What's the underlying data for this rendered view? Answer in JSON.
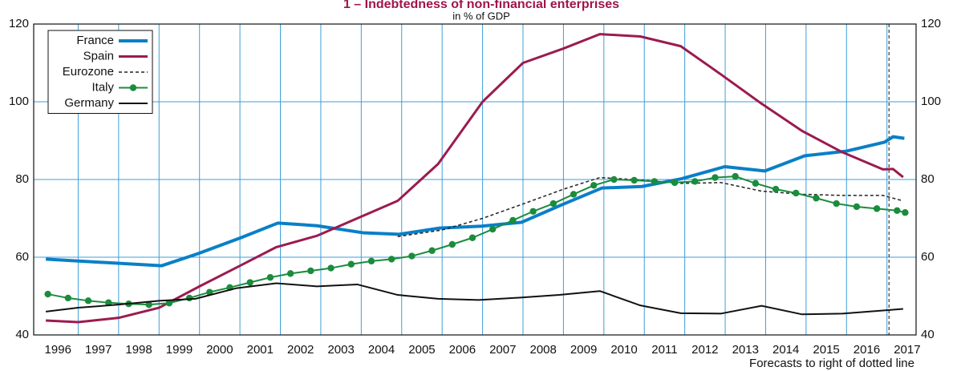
{
  "chart_data": {
    "type": "line",
    "title": "1 – Indebtedness of non-financial enterprises",
    "subtitle": "in % of GDP",
    "note": "Forecasts to right of dotted line",
    "forecast_x": 2016.55,
    "xlim": [
      1995.4,
      2017.22
    ],
    "xticks": [
      1996,
      1997,
      1998,
      1999,
      2000,
      2001,
      2002,
      2003,
      2004,
      2005,
      2006,
      2007,
      2008,
      2009,
      2010,
      2011,
      2012,
      2013,
      2014,
      2015,
      2016,
      2017
    ],
    "ylim": [
      40,
      120
    ],
    "yticks": [
      40,
      60,
      80,
      100,
      120
    ],
    "grid": true,
    "legend": "upper left",
    "series": [
      {
        "name": "France",
        "color": "#0a7fc7",
        "linewidth": 4,
        "x": [
          1995.7,
          1998.56,
          1999.43,
          2000.52,
          2001.44,
          2002.41,
          2003.54,
          2004.43,
          2005.44,
          2006.48,
          2007.47,
          2008.46,
          2009.45,
          2010.44,
          2011.42,
          2012.49,
          2013.48,
          2014.47,
          2015.5,
          2016.44,
          2016.65,
          2016.93
        ],
        "values": [
          59.5,
          57.8,
          60.8,
          65,
          68.8,
          68.1,
          66.3,
          65.9,
          67.5,
          68,
          69,
          73.5,
          77.8,
          78.2,
          80.2,
          83.3,
          82.2,
          86.1,
          87.3,
          89.6,
          91,
          90.6
        ]
      },
      {
        "name": "Spain",
        "color": "#9b1b4f",
        "linewidth": 3,
        "x": [
          1995.7,
          1996.5,
          1997.5,
          1998.5,
          1999.5,
          2000.5,
          2001.4,
          2002.4,
          2003.4,
          2004.4,
          2005.4,
          2006.5,
          2007.5,
          2008.5,
          2009.4,
          2010.4,
          2011.4,
          2012.4,
          2013.4,
          2014.4,
          2015.4,
          2016.4,
          2016.65,
          2016.9
        ],
        "values": [
          43.7,
          43.3,
          44.4,
          47,
          52.5,
          57.8,
          62.6,
          65.5,
          70,
          74.5,
          84,
          100,
          110,
          113.7,
          117.4,
          116.8,
          114.3,
          107,
          99.5,
          92.5,
          87,
          82.6,
          82.7,
          80.6
        ]
      },
      {
        "name": "Eurozone",
        "color": "#222222",
        "linewidth": 1.5,
        "dashed": true,
        "x": [
          2004.4,
          2005.5,
          2006.5,
          2007.5,
          2008.5,
          2009.4,
          2010.4,
          2011.4,
          2012.4,
          2013.4,
          2014.4,
          2015.4,
          2016.4,
          2016.9
        ],
        "values": [
          65.3,
          67,
          70,
          73.7,
          77.5,
          80.5,
          79.9,
          79,
          79.2,
          77,
          76.2,
          75.9,
          75.9,
          74.5
        ]
      },
      {
        "name": "Italy",
        "color": "#1a8c3c",
        "linewidth": 2,
        "markers": true,
        "x": [
          1995.75,
          1996.25,
          1996.75,
          1997.25,
          1997.75,
          1998.25,
          1998.75,
          1999.25,
          1999.75,
          2000.25,
          2000.75,
          2001.25,
          2001.75,
          2002.25,
          2002.75,
          2003.25,
          2003.75,
          2004.25,
          2004.75,
          2005.25,
          2005.75,
          2006.25,
          2006.75,
          2007.25,
          2007.75,
          2008.25,
          2008.75,
          2009.25,
          2009.75,
          2010.25,
          2010.75,
          2011.25,
          2011.75,
          2012.25,
          2012.75,
          2013.25,
          2013.75,
          2014.25,
          2014.75,
          2015.25,
          2015.75,
          2016.25,
          2016.75,
          2016.95
        ],
        "values": [
          50.5,
          49.5,
          48.8,
          48.3,
          48,
          47.8,
          48.2,
          49.5,
          51,
          52.2,
          53.5,
          54.8,
          55.8,
          56.5,
          57.2,
          58.2,
          59,
          59.5,
          60.3,
          61.7,
          63.3,
          65,
          67.2,
          69.5,
          71.8,
          73.8,
          76.2,
          78.5,
          80,
          79.8,
          79.5,
          79.2,
          79.5,
          80.5,
          80.8,
          79,
          77.5,
          76.5,
          75.2,
          73.8,
          73,
          72.5,
          72,
          71.5
        ]
      },
      {
        "name": "Germany",
        "color": "#111111",
        "linewidth": 2,
        "x": [
          1995.7,
          1996.5,
          1997.5,
          1998.5,
          1999.4,
          2000.4,
          2001.4,
          2002.4,
          2003.4,
          2004.4,
          2005.4,
          2006.4,
          2007.4,
          2008.4,
          2009.4,
          2010.4,
          2011.4,
          2012.4,
          2013.4,
          2014.4,
          2015.4,
          2016.4,
          2016.9
        ],
        "values": [
          46,
          47,
          47.8,
          48.8,
          49.3,
          52,
          53.3,
          52.5,
          53,
          50.3,
          49.3,
          49,
          49.6,
          50.3,
          51.3,
          47.6,
          45.6,
          45.5,
          47.5,
          45.3,
          45.5,
          46.3,
          46.7
        ]
      }
    ]
  }
}
